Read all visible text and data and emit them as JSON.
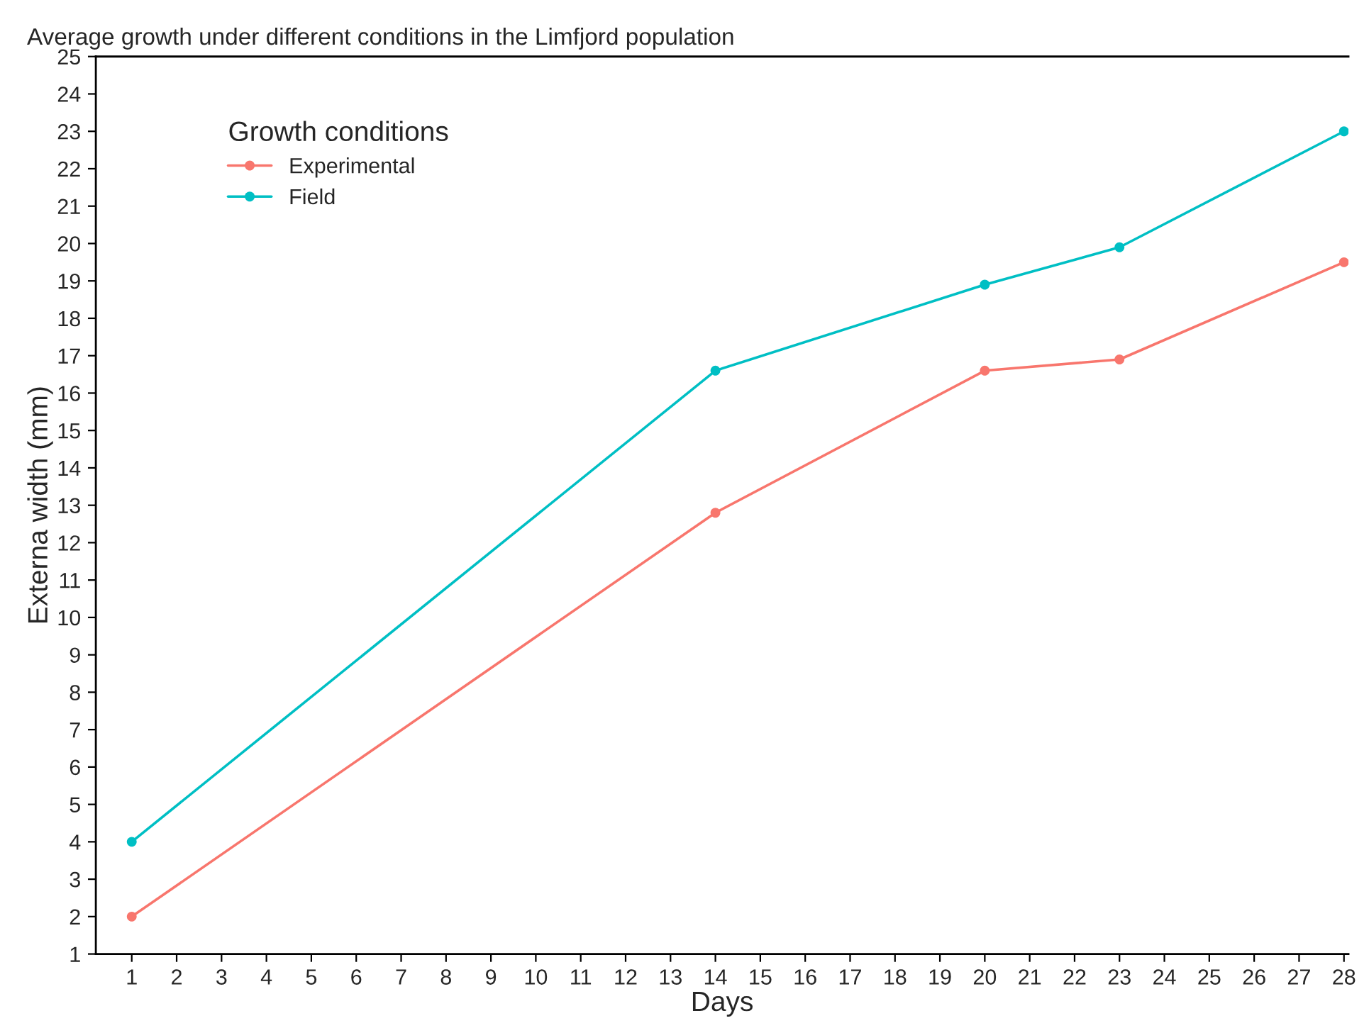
{
  "chart_data": {
    "type": "line",
    "title": "Average growth under different conditions in the Limfjord population",
    "xlabel": "Days",
    "ylabel": "Externa width (mm)",
    "legend_title": "Growth conditions",
    "legend": "top left",
    "marker": "circle",
    "line_style": "solid",
    "grid": false,
    "x": [
      1,
      14,
      20,
      23,
      28
    ],
    "series": [
      {
        "name": "Experimental",
        "color": "#f8766d",
        "values": [
          2,
          12.8,
          16.6,
          16.9,
          19.5
        ]
      },
      {
        "name": "Field",
        "color": "#00bfc4",
        "values": [
          4,
          16.6,
          18.9,
          19.9,
          23
        ]
      }
    ],
    "xlim": [
      0.2,
      28.1
    ],
    "ylim": [
      1,
      25
    ],
    "xticks": [
      1,
      2,
      3,
      4,
      5,
      6,
      7,
      8,
      9,
      10,
      11,
      12,
      13,
      14,
      15,
      16,
      17,
      18,
      19,
      20,
      21,
      22,
      23,
      24,
      25,
      26,
      27,
      28
    ],
    "yticks": [
      1,
      2,
      3,
      4,
      5,
      6,
      7,
      8,
      9,
      10,
      11,
      12,
      13,
      14,
      15,
      16,
      17,
      18,
      19,
      20,
      21,
      22,
      23,
      24,
      25
    ]
  }
}
